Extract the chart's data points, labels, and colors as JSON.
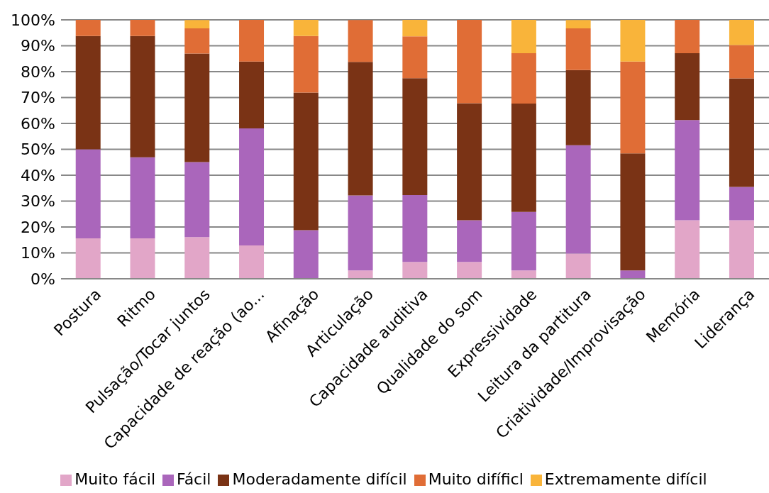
{
  "chart_data": {
    "type": "bar",
    "stacked": true,
    "categories": [
      "Postura",
      "Ritmo",
      "Pulsação/Tocar juntos",
      "Capacidade de reação (ao...",
      "Afinação",
      "Articulação",
      "Capacidade auditiva",
      "Qualidade do som",
      "Expressividade",
      "Leitura da partitura",
      "Criatividade/Improvisação",
      "Memória",
      "Liderança"
    ],
    "series": [
      {
        "name": "Muito fácil",
        "color": "#e2a6c8",
        "values": [
          15.6,
          15.6,
          16.1,
          12.9,
          0,
          3.2,
          6.5,
          6.5,
          3.2,
          9.7,
          0,
          22.6,
          22.6
        ]
      },
      {
        "name": "Fácil",
        "color": "#aa66bb",
        "values": [
          34.4,
          31.3,
          29.0,
          45.2,
          18.8,
          29.0,
          25.8,
          16.1,
          22.6,
          41.9,
          3.2,
          38.7,
          12.9
        ]
      },
      {
        "name": "Moderadamente difícil",
        "color": "#7a3315",
        "values": [
          43.8,
          46.9,
          41.9,
          25.8,
          53.1,
          51.6,
          45.2,
          45.2,
          41.9,
          29.0,
          45.2,
          25.8,
          41.9
        ]
      },
      {
        "name": "Muito difíficl",
        "color": "#e06d36",
        "values": [
          6.2,
          6.2,
          9.7,
          16.1,
          21.9,
          16.1,
          16.1,
          32.3,
          19.4,
          16.1,
          35.5,
          12.9,
          12.9
        ]
      },
      {
        "name": "Extremamente difícil",
        "color": "#f9b43a",
        "values": [
          0,
          0,
          3.2,
          0,
          6.3,
          0,
          6.5,
          0,
          12.9,
          3.2,
          16.1,
          0,
          9.7
        ]
      }
    ],
    "ylim": [
      0,
      100
    ],
    "yticks": [
      {
        "value": 0,
        "label": "0%"
      },
      {
        "value": 10,
        "label": "10%"
      },
      {
        "value": 20,
        "label": "20%"
      },
      {
        "value": 30,
        "label": "30%"
      },
      {
        "value": 40,
        "label": "40%"
      },
      {
        "value": 50,
        "label": "50%"
      },
      {
        "value": 60,
        "label": "60%"
      },
      {
        "value": 70,
        "label": "70%"
      },
      {
        "value": 80,
        "label": "80%"
      },
      {
        "value": 90,
        "label": "90%"
      },
      {
        "value": 100,
        "label": "100%"
      }
    ],
    "grid": "y",
    "legend": "bottom"
  }
}
